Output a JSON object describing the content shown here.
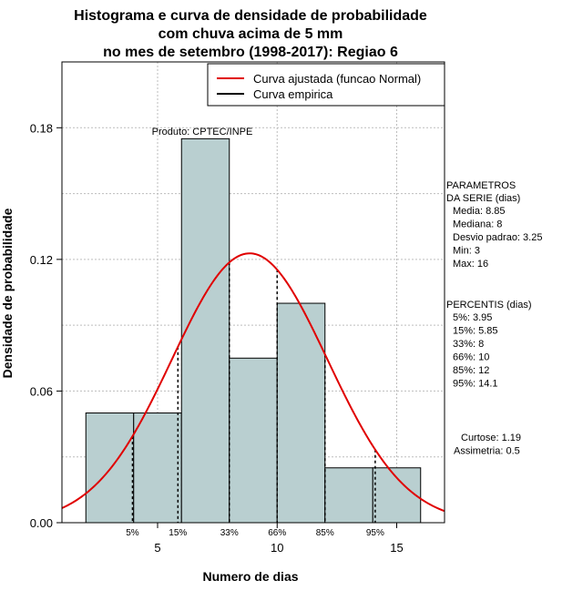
{
  "chart_data": {
    "type": "bar",
    "title": [
      "Histograma e curva de densidade de probabilidade",
      "com chuva acima de 5 mm",
      "no mes de setembro (1998-2017): Regiao 6"
    ],
    "xlabel": "Numero de dias",
    "ylabel": "Densidade de probabilidade",
    "xlim": [
      1,
      17
    ],
    "ylim": [
      0,
      0.21
    ],
    "x_ticks": [
      5,
      10,
      15
    ],
    "y_ticks": [
      0.0,
      0.06,
      0.12,
      0.18
    ],
    "y_tick_labels": [
      "0.00",
      "0.06",
      "0.12",
      "0.18"
    ],
    "bins": [
      {
        "x0": 2,
        "x1": 4,
        "density": 0.05
      },
      {
        "x0": 4,
        "x1": 6,
        "density": 0.05
      },
      {
        "x0": 6,
        "x1": 8,
        "density": 0.175
      },
      {
        "x0": 8,
        "x1": 10,
        "density": 0.075
      },
      {
        "x0": 10,
        "x1": 12,
        "density": 0.1
      },
      {
        "x0": 12,
        "x1": 14,
        "density": 0.025
      },
      {
        "x0": 14,
        "x1": 16,
        "density": 0.025
      }
    ],
    "normal_fit": {
      "mean": 8.85,
      "sd": 3.25
    },
    "percentile_marks": [
      {
        "label": "5%",
        "x": 3.95
      },
      {
        "label": "15%",
        "x": 5.85
      },
      {
        "label": "33%",
        "x": 8
      },
      {
        "label": "66%",
        "x": 10
      },
      {
        "label": "85%",
        "x": 12
      },
      {
        "label": "95%",
        "x": 14.1
      }
    ],
    "legend": [
      {
        "label": "Curva ajustada (funcao Normal)",
        "color": "#e00000"
      },
      {
        "label": "Curva empirica",
        "color": "#000000"
      }
    ],
    "annotation": "Produto: CPTEC/INPE",
    "colors": {
      "bar_fill": "#b9cfd0",
      "curve": "#e00000",
      "grid": "#bdbdbd"
    }
  },
  "side_panel": {
    "params_heading": [
      "PARAMETROS",
      "DA SERIE (dias)"
    ],
    "params": [
      "Media: 8.85",
      "Mediana: 8",
      "Desvio padrao: 3.25",
      "Min: 3",
      "Max: 16"
    ],
    "percentis_heading": "PERCENTIS (dias)",
    "percentis": [
      "5%: 3.95",
      "15%: 5.85",
      "33%: 8",
      "66%: 10",
      "85%: 12",
      "95%: 14.1"
    ],
    "stats": [
      "Curtose: 1.19",
      "Assimetria: 0.5"
    ]
  }
}
